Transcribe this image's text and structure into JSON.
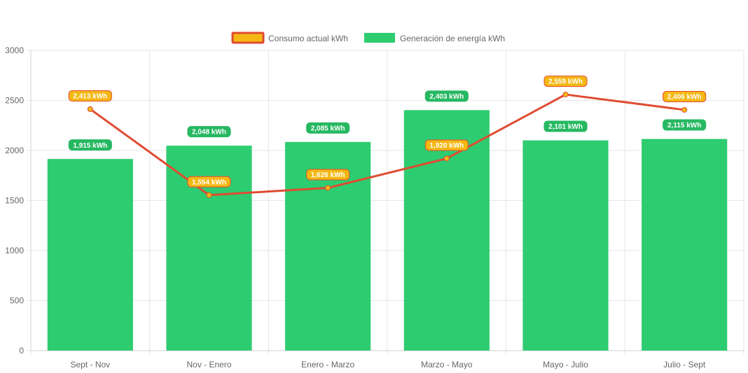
{
  "chart_data": {
    "type": "bar",
    "title": "",
    "xlabel": "",
    "ylabel": "",
    "categories": [
      "Sept - Nov",
      "Nov - Enero",
      "Enero - Marzo",
      "Marzo - Mayo",
      "Mayo - Julio",
      "Julio - Sept"
    ],
    "ylim": [
      0,
      3000
    ],
    "yticks": [
      "0",
      "500",
      "1000",
      "1500",
      "2000",
      "2500",
      "3000"
    ],
    "ytick_values": [
      0,
      500,
      1000,
      1500,
      2000,
      2500,
      3000
    ],
    "grid": true,
    "legend_position": "top",
    "series": [
      {
        "name": "Consumo actual kWh",
        "type": "line",
        "values": [
          2413,
          1554,
          1626,
          1920,
          2559,
          2406
        ],
        "labels": [
          "2,413 kWh",
          "1,554 kWh",
          "1,626 kWh",
          "1,920 kWh",
          "2,559 kWh",
          "2,406 kWh"
        ],
        "color": "#e04b32",
        "point_color": "#f5b813",
        "label_bg": "#f5b813"
      },
      {
        "name": "Generación de energía kWh",
        "type": "bar",
        "values": [
          1915,
          2048,
          2085,
          2403,
          2101,
          2115
        ],
        "labels": [
          "1,915 kWh",
          "2,048 kWh",
          "2,085 kWh",
          "2,403 kWh",
          "2,101 kWh",
          "2,115 kWh"
        ],
        "color": "#2ecc71",
        "label_bg": "#27b862"
      }
    ]
  }
}
